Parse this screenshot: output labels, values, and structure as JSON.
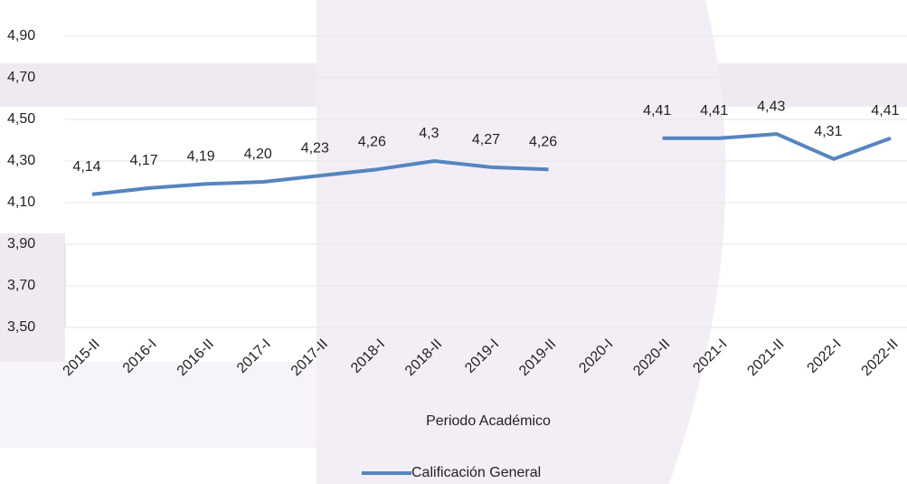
{
  "chart_data": {
    "type": "line",
    "x_label": "Periodo Académico",
    "categories": [
      "2015-II",
      "2016-I",
      "2016-II",
      "2017-I",
      "2017-II",
      "2018-I",
      "2018-II",
      "2019-I",
      "2019-II",
      "2020-I",
      "2020-II",
      "2021-I",
      "2021-II",
      "2022-I",
      "2022-II"
    ],
    "series": [
      {
        "name": "Calificación General",
        "color": "#5585bf",
        "values": [
          4.14,
          4.17,
          4.19,
          4.2,
          4.23,
          4.26,
          4.3,
          4.27,
          4.26,
          null,
          4.41,
          4.41,
          4.43,
          4.31,
          4.41
        ],
        "value_labels": [
          "4,14",
          "4,17",
          "4,19",
          "4,20",
          "4,23",
          "4,26",
          "4,3",
          "4,27",
          "4,26",
          null,
          "4,41",
          "4,41",
          "4,43",
          "4,31",
          "4,41"
        ]
      }
    ],
    "ylim": [
      3.5,
      4.9
    ],
    "yticks": [
      {
        "value": 3.5,
        "label": "3,50"
      },
      {
        "value": 3.7,
        "label": "3,70"
      },
      {
        "value": 3.9,
        "label": "3,90"
      },
      {
        "value": 4.1,
        "label": "4,10"
      },
      {
        "value": 4.3,
        "label": "4,30"
      },
      {
        "value": 4.5,
        "label": "4,50"
      },
      {
        "value": 4.7,
        "label": "4,70"
      },
      {
        "value": 4.9,
        "label": "4,90"
      }
    ],
    "grid": true,
    "legend": "bottom"
  }
}
